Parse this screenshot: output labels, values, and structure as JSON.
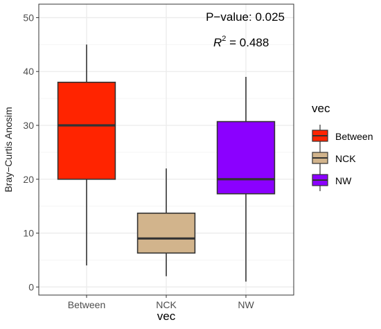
{
  "chart_data": {
    "type": "boxplot",
    "xlabel": "vec",
    "ylabel": "Bray−Curtis Anosim",
    "ylim": [
      -1.5,
      52.5
    ],
    "y_ticks": [
      0,
      10,
      20,
      30,
      40,
      50
    ],
    "grid": true,
    "categories": [
      "Between",
      "NCK",
      "NW"
    ],
    "boxes": [
      {
        "category": "Between",
        "whisker_low": 4,
        "q1": 20,
        "median": 30,
        "q3": 38,
        "whisker_high": 45
      },
      {
        "category": "NCK",
        "whisker_low": 2,
        "q1": 6.3,
        "median": 9,
        "q3": 13.7,
        "whisker_high": 22
      },
      {
        "category": "NW",
        "whisker_low": 1,
        "q1": 17.3,
        "median": 20,
        "q3": 30.7,
        "whisker_high": 39
      }
    ],
    "annotations": {
      "pvalue": "P−value: 0.025",
      "r2_label": "R",
      "r2_sup": "2",
      "r2_value": " = 0.488"
    },
    "legend": {
      "title": "vec",
      "placement": "right",
      "entries": [
        "Between",
        "NCK",
        "NW"
      ]
    }
  },
  "colors": {
    "Between": "#ff2400",
    "NCK": "#d2b48c",
    "NW": "#8b00ff",
    "box_stroke": "#333333",
    "grid_major": "#ebebeb",
    "grid_minor": "#f5f5f5",
    "panel_border": "#333333"
  }
}
